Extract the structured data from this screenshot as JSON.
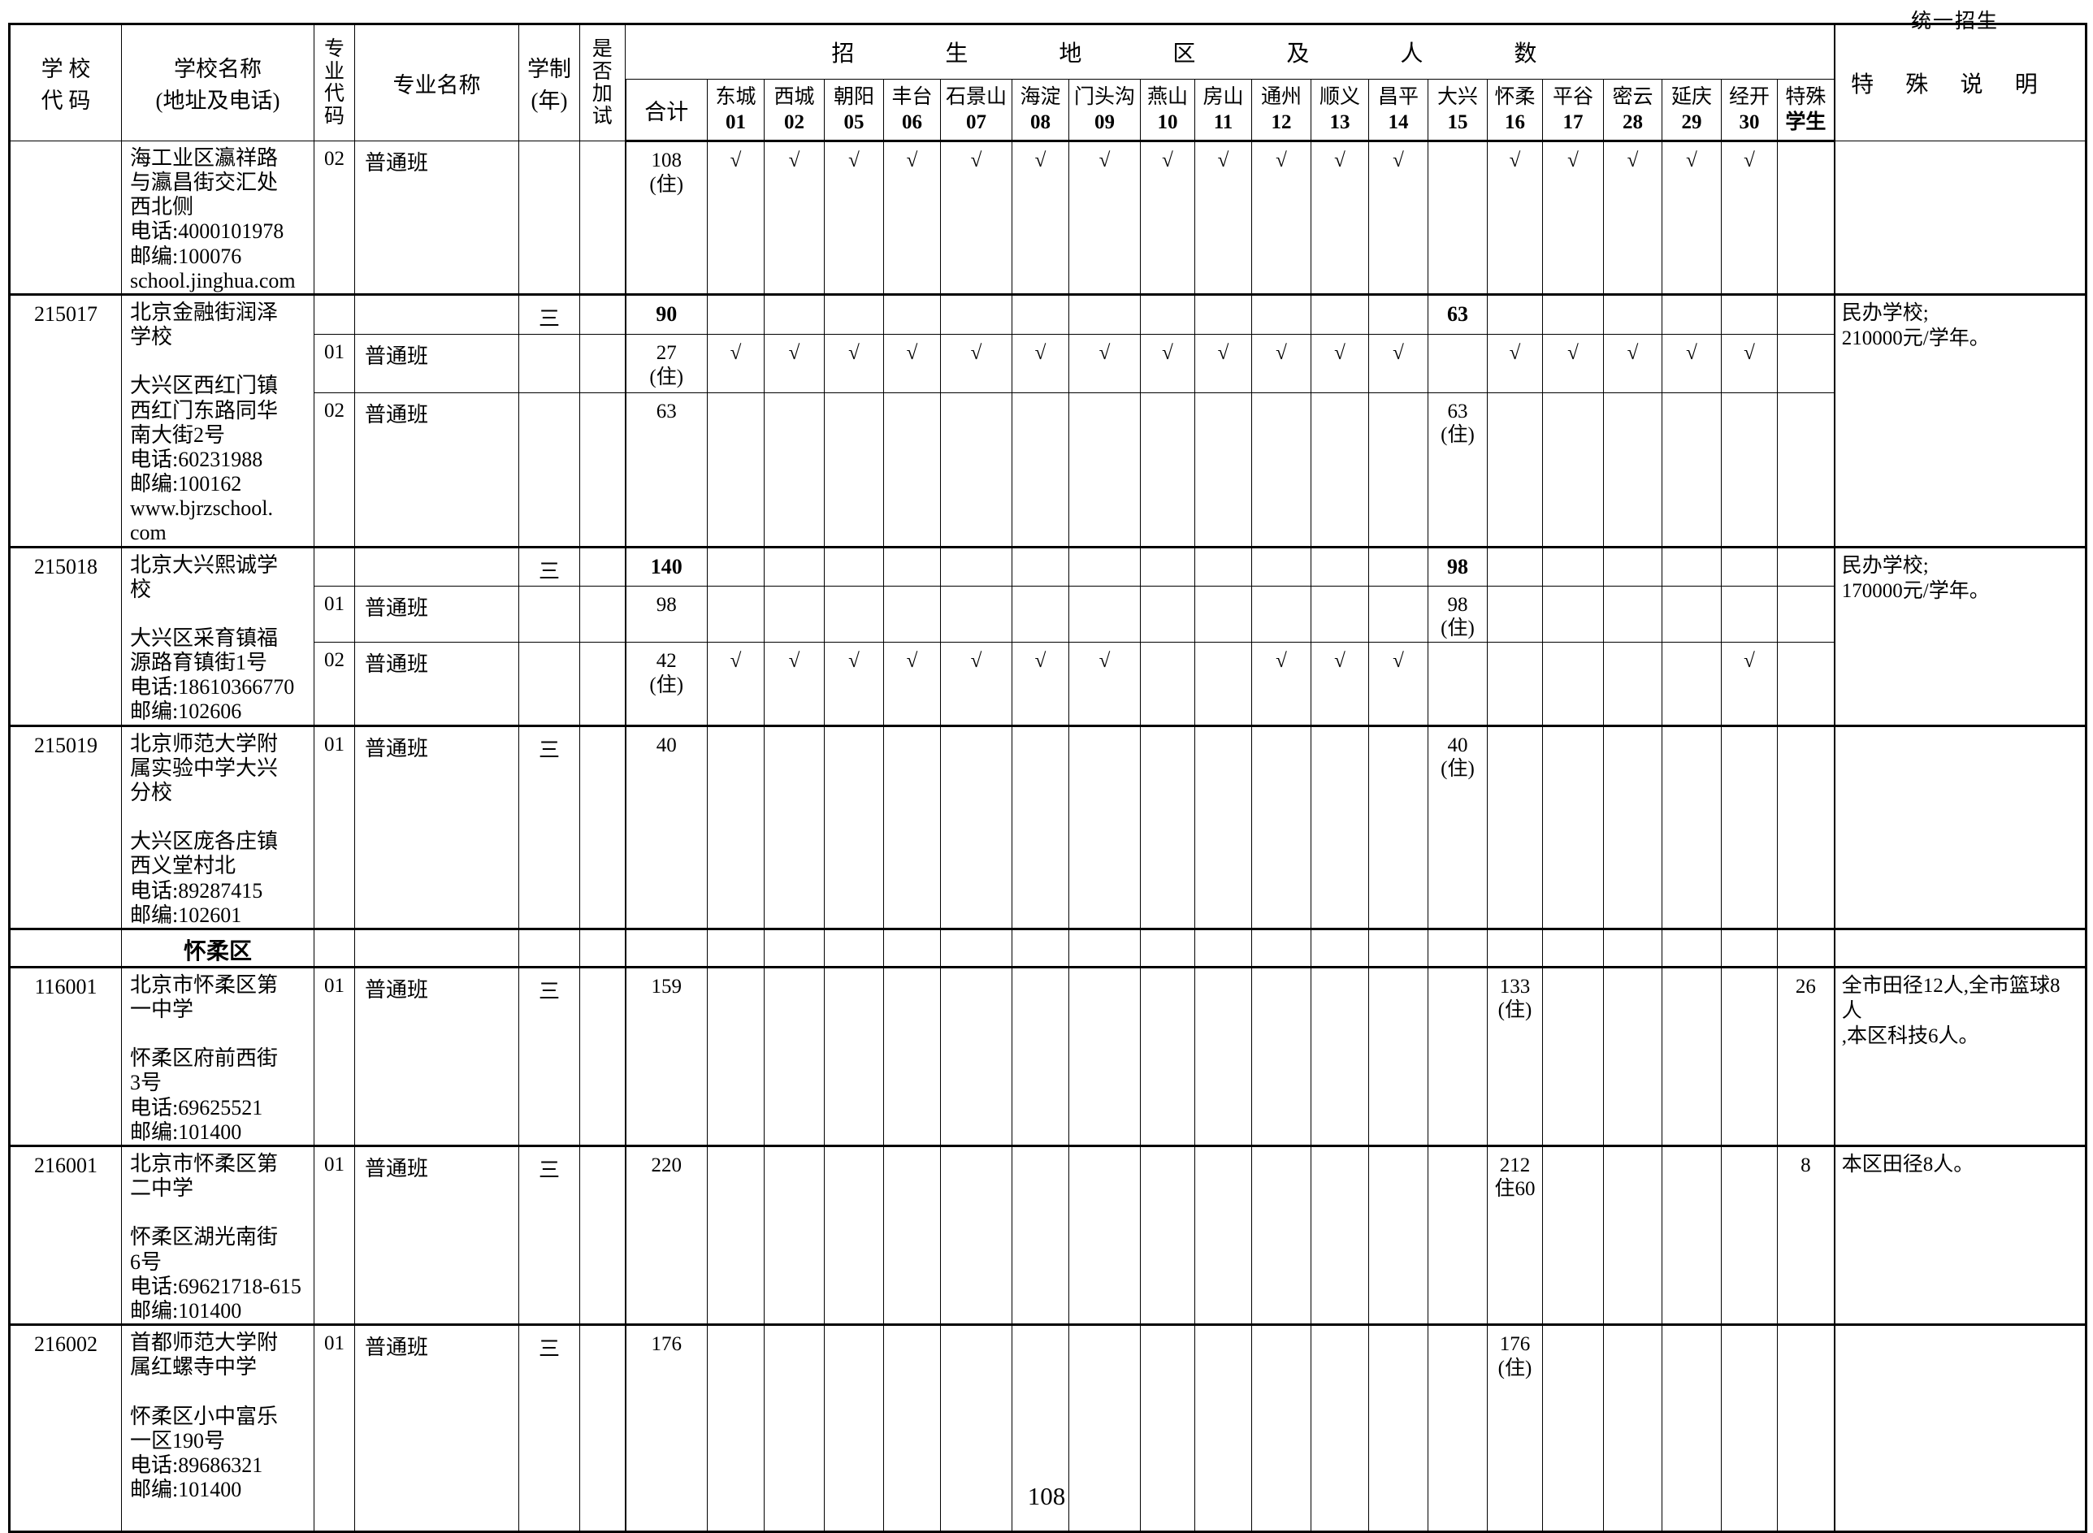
{
  "page": {
    "corner_label": "统一招生",
    "page_number": "108"
  },
  "header": {
    "school_code": "学 校\n代 码",
    "school_name": "学校名称\n(地址及电话)",
    "major_code": "专\n业\n代\n码",
    "major_name": "专业名称",
    "years": "学制\n(年)",
    "extra_test": "是\n否\n加\n试",
    "region_group": "招生地区及人数",
    "total": "合计",
    "special_student": {
      "name": "特殊",
      "code": "学生"
    },
    "special_note": "特殊说明"
  },
  "districts": [
    {
      "name": "东城",
      "code": "01"
    },
    {
      "name": "西城",
      "code": "02"
    },
    {
      "name": "朝阳",
      "code": "05"
    },
    {
      "name": "丰台",
      "code": "06"
    },
    {
      "name": "石景山",
      "code": "07"
    },
    {
      "name": "海淀",
      "code": "08"
    },
    {
      "name": "门头沟",
      "code": "09"
    },
    {
      "name": "燕山",
      "code": "10"
    },
    {
      "name": "房山",
      "code": "11"
    },
    {
      "name": "通州",
      "code": "12"
    },
    {
      "name": "顺义",
      "code": "13"
    },
    {
      "name": "昌平",
      "code": "14"
    },
    {
      "name": "大兴",
      "code": "15"
    },
    {
      "name": "怀柔",
      "code": "16"
    },
    {
      "name": "平谷",
      "code": "17"
    },
    {
      "name": "密云",
      "code": "28"
    },
    {
      "name": "延庆",
      "code": "29"
    },
    {
      "name": "经开",
      "code": "30"
    }
  ],
  "rows": [
    {
      "code": "",
      "name": "海工业区瀛祥路\n与瀛昌街交汇处\n西北侧\n电话:4000101978\n邮编:100076\nschool.jinghua.com",
      "major_code": "02",
      "major_name": "普通班",
      "years": "",
      "cells": [
        "108\n(住)",
        "√",
        "√",
        "√",
        "√",
        "√",
        "√",
        "√",
        "√",
        "√",
        "√",
        "√",
        "√",
        "",
        "√",
        "√",
        "√",
        "√",
        "√",
        ""
      ],
      "note": ""
    },
    {
      "code": "215017",
      "name": "北京金融街润泽\n学校\n\n大兴区西红门镇\n西红门东路同华\n南大街2号\n电话:60231988\n邮编:100162\nwww.bjrzschool.\ncom",
      "years": "三",
      "cells": [
        "90",
        "",
        "",
        "",
        "",
        "",
        "",
        "",
        "",
        "",
        "",
        "",
        "",
        "63",
        "",
        "",
        "",
        "",
        "",
        ""
      ],
      "note": "民办学校;\n210000元/学年。"
    },
    {
      "major_code": "01",
      "major_name": "普通班",
      "cells": [
        "27\n(住)",
        "√",
        "√",
        "√",
        "√",
        "√",
        "√",
        "√",
        "√",
        "√",
        "√",
        "√",
        "√",
        "",
        "√",
        "√",
        "√",
        "√",
        "√",
        ""
      ]
    },
    {
      "major_code": "02",
      "major_name": "普通班",
      "cells": [
        "63",
        "",
        "",
        "",
        "",
        "",
        "",
        "",
        "",
        "",
        "",
        "",
        "",
        "63\n(住)",
        "",
        "",
        "",
        "",
        "",
        ""
      ]
    },
    {
      "code": "215018",
      "name": "北京大兴熙诚学\n校\n\n大兴区采育镇福\n源路育镇街1号\n电话:18610366770\n邮编:102606",
      "years": "三",
      "cells": [
        "140",
        "",
        "",
        "",
        "",
        "",
        "",
        "",
        "",
        "",
        "",
        "",
        "",
        "98",
        "",
        "",
        "",
        "",
        "",
        ""
      ],
      "note": "民办学校;\n170000元/学年。"
    },
    {
      "major_code": "01",
      "major_name": "普通班",
      "cells": [
        "98",
        "",
        "",
        "",
        "",
        "",
        "",
        "",
        "",
        "",
        "",
        "",
        "",
        "98\n(住)",
        "",
        "",
        "",
        "",
        "",
        ""
      ]
    },
    {
      "major_code": "02",
      "major_name": "普通班",
      "cells": [
        "42\n(住)",
        "√",
        "√",
        "√",
        "√",
        "√",
        "√",
        "√",
        "",
        "",
        "√",
        "√",
        "√",
        "",
        "",
        "",
        "",
        "",
        "√",
        ""
      ]
    },
    {
      "code": "215019",
      "name": "北京师范大学附\n属实验中学大兴\n分校\n\n大兴区庞各庄镇\n西义堂村北\n电话:89287415\n邮编:102601",
      "major_code": "01",
      "major_name": "普通班",
      "years": "三",
      "cells": [
        "40",
        "",
        "",
        "",
        "",
        "",
        "",
        "",
        "",
        "",
        "",
        "",
        "",
        "40\n(住)",
        "",
        "",
        "",
        "",
        "",
        ""
      ],
      "note": ""
    },
    {
      "section": "怀柔区",
      "cells": [
        "",
        "",
        "",
        "",
        "",
        "",
        "",
        "",
        "",
        "",
        "",
        "",
        "",
        "",
        "",
        "",
        "",
        "",
        "",
        ""
      ]
    },
    {
      "code": "116001",
      "name": "北京市怀柔区第\n一中学\n\n怀柔区府前西街\n3号\n电话:69625521\n邮编:101400",
      "major_code": "01",
      "major_name": "普通班",
      "years": "三",
      "cells": [
        "159",
        "",
        "",
        "",
        "",
        "",
        "",
        "",
        "",
        "",
        "",
        "",
        "",
        "",
        "133\n(住)",
        "",
        "",
        "",
        "",
        "26"
      ],
      "note": "全市田径12人,全市篮球8人\n,本区科技6人。"
    },
    {
      "code": "216001",
      "name": "北京市怀柔区第\n二中学\n\n怀柔区湖光南街\n6号\n电话:69621718-615\n邮编:101400",
      "major_code": "01",
      "major_name": "普通班",
      "years": "三",
      "cells": [
        "220",
        "",
        "",
        "",
        "",
        "",
        "",
        "",
        "",
        "",
        "",
        "",
        "",
        "",
        "212\n住60",
        "",
        "",
        "",
        "",
        "8"
      ],
      "note": "本区田径8人。"
    },
    {
      "code": "216002",
      "name": "首都师范大学附\n属红螺寺中学\n\n怀柔区小中富乐\n一区190号\n电话:89686321\n邮编:101400",
      "major_code": "01",
      "major_name": "普通班",
      "years": "三",
      "cells": [
        "176",
        "",
        "",
        "",
        "",
        "",
        "",
        "",
        "",
        "",
        "",
        "",
        "",
        "",
        "176\n(住)",
        "",
        "",
        "",
        "",
        ""
      ],
      "note": ""
    }
  ]
}
